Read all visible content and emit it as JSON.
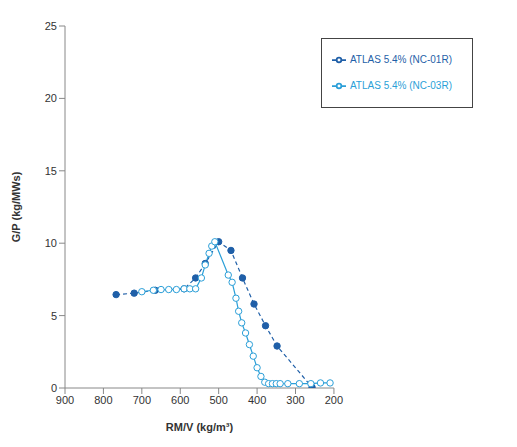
{
  "chart_data": {
    "type": "line",
    "x_label": "RM/V (kg/m³)",
    "y_label": "G/P (kg/MWs)",
    "xlim": [
      900,
      200
    ],
    "xticks": [
      900,
      800,
      700,
      600,
      500,
      400,
      300,
      200
    ],
    "ylim": [
      0,
      25
    ],
    "yticks": [
      0,
      5,
      10,
      15,
      20,
      25
    ],
    "grid": false,
    "legend": "upper right",
    "series": [
      {
        "name": "ATLAS 5.4% (NC-01R)",
        "color": "#1f5fa8",
        "marker": "filled_circle",
        "line_style": "dashed",
        "x": [
          767,
          720,
          665,
          590,
          560,
          535,
          500,
          468,
          438,
          408,
          378,
          348,
          257
        ],
        "values": [
          6.45,
          6.55,
          6.75,
          6.85,
          7.6,
          8.6,
          10.1,
          9.5,
          7.6,
          5.8,
          4.3,
          2.9,
          0.05
        ]
      },
      {
        "name": "ATLAS 5.4% (NC-03R)",
        "color": "#2b9fd8",
        "marker": "open_circle",
        "line_style": "solid",
        "x": [
          700,
          670,
          650,
          630,
          610,
          590,
          575,
          560,
          545,
          535,
          525,
          518,
          510,
          475,
          465,
          455,
          448,
          440,
          430,
          420,
          410,
          400,
          390,
          380,
          370,
          360,
          350,
          340,
          320,
          290,
          260,
          235,
          210
        ],
        "values": [
          6.65,
          6.75,
          6.8,
          6.8,
          6.8,
          6.85,
          6.85,
          6.85,
          7.6,
          8.5,
          9.3,
          9.8,
          10.1,
          7.8,
          7.3,
          6.2,
          5.3,
          4.5,
          3.8,
          3.0,
          2.2,
          1.4,
          0.8,
          0.4,
          0.3,
          0.3,
          0.3,
          0.3,
          0.3,
          0.3,
          0.3,
          0.35,
          0.35
        ]
      }
    ]
  }
}
